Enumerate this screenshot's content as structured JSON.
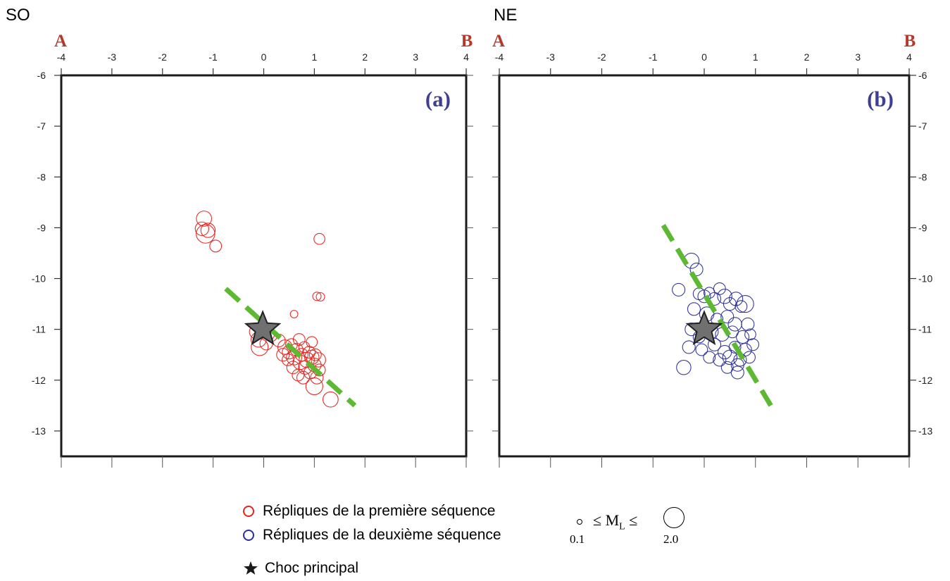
{
  "header": {
    "left": "SO",
    "right": "NE"
  },
  "colors": {
    "first": "#e8221c",
    "second": "#2c2f9a",
    "trend": "#5db832",
    "star": "#707070",
    "section_letter": "#b5382a",
    "panel_label": "#3d3f96"
  },
  "chart_data": [
    {
      "type": "scatter",
      "panel_label": "(a)",
      "section_start": "A",
      "section_end": "B",
      "xlim": [
        -4,
        4
      ],
      "ylim": [
        -13.5,
        -6
      ],
      "xticks": [
        -4,
        -3,
        -2,
        -1,
        0,
        1,
        2,
        3,
        4
      ],
      "yticks": [
        -6,
        -7,
        -8,
        -9,
        -10,
        -11,
        -12,
        -13
      ],
      "ytick_side": "left",
      "series": [
        {
          "name": "Répliques de la première séquence",
          "color": "#e8221c",
          "points": [
            {
              "x": -1.18,
              "y": -8.82,
              "m": 1.3
            },
            {
              "x": -1.22,
              "y": -9.02,
              "m": 1.1
            },
            {
              "x": -1.1,
              "y": -9.05,
              "m": 1.2
            },
            {
              "x": -1.15,
              "y": -9.12,
              "m": 1.7
            },
            {
              "x": -0.95,
              "y": -9.36,
              "m": 0.9
            },
            {
              "x": 1.1,
              "y": -9.22,
              "m": 0.8
            },
            {
              "x": 1.05,
              "y": -10.35,
              "m": 0.5
            },
            {
              "x": 1.12,
              "y": -10.36,
              "m": 0.5
            },
            {
              "x": 0.6,
              "y": -10.7,
              "m": 0.4
            },
            {
              "x": -0.15,
              "y": -11.05,
              "m": 1.1
            },
            {
              "x": -0.1,
              "y": -11.2,
              "m": 1.3
            },
            {
              "x": -0.08,
              "y": -11.35,
              "m": 1.5
            },
            {
              "x": 0.05,
              "y": -11.28,
              "m": 1.0
            },
            {
              "x": 0.15,
              "y": -11.12,
              "m": 0.9
            },
            {
              "x": 0.3,
              "y": -11.22,
              "m": 1.0
            },
            {
              "x": 0.42,
              "y": -11.35,
              "m": 1.2
            },
            {
              "x": 0.5,
              "y": -11.45,
              "m": 1.1
            },
            {
              "x": 0.55,
              "y": -11.3,
              "m": 0.9
            },
            {
              "x": 0.6,
              "y": -11.55,
              "m": 1.3
            },
            {
              "x": 0.65,
              "y": -11.4,
              "m": 1.0
            },
            {
              "x": 0.7,
              "y": -11.2,
              "m": 0.9
            },
            {
              "x": 0.72,
              "y": -11.65,
              "m": 1.2
            },
            {
              "x": 0.75,
              "y": -11.5,
              "m": 1.0
            },
            {
              "x": 0.8,
              "y": -11.35,
              "m": 0.8
            },
            {
              "x": 0.82,
              "y": -11.75,
              "m": 1.1
            },
            {
              "x": 0.85,
              "y": -11.6,
              "m": 1.3
            },
            {
              "x": 0.9,
              "y": -11.45,
              "m": 0.9
            },
            {
              "x": 0.92,
              "y": -11.85,
              "m": 1.0
            },
            {
              "x": 0.95,
              "y": -11.55,
              "m": 1.2
            },
            {
              "x": 1.0,
              "y": -11.7,
              "m": 1.1
            },
            {
              "x": 1.02,
              "y": -11.5,
              "m": 0.9
            },
            {
              "x": 1.05,
              "y": -11.95,
              "m": 1.0
            },
            {
              "x": 1.08,
              "y": -11.6,
              "m": 1.2
            },
            {
              "x": 1.1,
              "y": -11.8,
              "m": 0.9
            },
            {
              "x": 0.68,
              "y": -11.9,
              "m": 0.9
            },
            {
              "x": 0.78,
              "y": -11.95,
              "m": 1.0
            },
            {
              "x": 0.58,
              "y": -11.75,
              "m": 1.0
            },
            {
              "x": 0.48,
              "y": -11.6,
              "m": 0.9
            },
            {
              "x": 0.38,
              "y": -11.5,
              "m": 1.0
            },
            {
              "x": 1.0,
              "y": -12.12,
              "m": 1.5
            },
            {
              "x": 0.95,
              "y": -11.25,
              "m": 0.8
            },
            {
              "x": 1.32,
              "y": -12.38,
              "m": 1.3
            }
          ]
        }
      ],
      "mainshock": {
        "name": "Choc principal",
        "x": -0.02,
        "y": -11.0
      },
      "trend_line": {
        "x0": -0.75,
        "y0": -10.2,
        "x1": 1.8,
        "y1": -12.5
      }
    },
    {
      "type": "scatter",
      "panel_label": "(b)",
      "section_start": "A",
      "section_end": "B",
      "xlim": [
        -4,
        4
      ],
      "ylim": [
        -13.5,
        -6
      ],
      "xticks": [
        -4,
        -3,
        -2,
        -1,
        0,
        1,
        2,
        3,
        4
      ],
      "yticks": [
        -6,
        -7,
        -8,
        -9,
        -10,
        -11,
        -12,
        -13
      ],
      "ytick_side": "right",
      "series": [
        {
          "name": "Répliques de la deuxième séquence",
          "color": "#2c2f9a",
          "points": [
            {
              "x": -0.25,
              "y": -9.65,
              "m": 1.3
            },
            {
              "x": -0.15,
              "y": -9.82,
              "m": 1.0
            },
            {
              "x": -0.5,
              "y": -10.22,
              "m": 1.0
            },
            {
              "x": -0.1,
              "y": -10.3,
              "m": 0.9
            },
            {
              "x": 0.0,
              "y": -10.35,
              "m": 1.0
            },
            {
              "x": 0.1,
              "y": -10.28,
              "m": 0.8
            },
            {
              "x": 0.2,
              "y": -10.4,
              "m": 1.0
            },
            {
              "x": 0.3,
              "y": -10.2,
              "m": 0.9
            },
            {
              "x": 0.4,
              "y": -10.35,
              "m": 1.2
            },
            {
              "x": 0.5,
              "y": -10.5,
              "m": 1.0
            },
            {
              "x": 0.62,
              "y": -10.4,
              "m": 1.1
            },
            {
              "x": 0.72,
              "y": -10.55,
              "m": 0.9
            },
            {
              "x": 0.8,
              "y": -10.5,
              "m": 1.5
            },
            {
              "x": -0.2,
              "y": -10.6,
              "m": 1.0
            },
            {
              "x": 0.05,
              "y": -10.7,
              "m": 1.2
            },
            {
              "x": 0.25,
              "y": -10.8,
              "m": 0.9
            },
            {
              "x": 0.45,
              "y": -10.75,
              "m": 1.0
            },
            {
              "x": 0.6,
              "y": -10.9,
              "m": 1.1
            },
            {
              "x": 0.85,
              "y": -10.9,
              "m": 1.0
            },
            {
              "x": -0.25,
              "y": -11.0,
              "m": 1.0
            },
            {
              "x": -0.1,
              "y": -11.15,
              "m": 0.9
            },
            {
              "x": 0.15,
              "y": -11.05,
              "m": 1.0
            },
            {
              "x": 0.35,
              "y": -11.1,
              "m": 1.1
            },
            {
              "x": 0.55,
              "y": -11.05,
              "m": 0.9
            },
            {
              "x": 0.75,
              "y": -11.15,
              "m": 1.0
            },
            {
              "x": 0.9,
              "y": -11.1,
              "m": 0.8
            },
            {
              "x": -0.3,
              "y": -11.35,
              "m": 1.0
            },
            {
              "x": -0.05,
              "y": -11.4,
              "m": 0.9
            },
            {
              "x": 0.2,
              "y": -11.3,
              "m": 1.0
            },
            {
              "x": 0.4,
              "y": -11.45,
              "m": 1.1
            },
            {
              "x": 0.6,
              "y": -11.35,
              "m": 0.9
            },
            {
              "x": 0.8,
              "y": -11.4,
              "m": 1.0
            },
            {
              "x": 0.95,
              "y": -11.3,
              "m": 0.9
            },
            {
              "x": 0.3,
              "y": -11.6,
              "m": 1.0
            },
            {
              "x": 0.5,
              "y": -11.55,
              "m": 1.2
            },
            {
              "x": 0.7,
              "y": -11.6,
              "m": 1.0
            },
            {
              "x": 0.88,
              "y": -11.55,
              "m": 0.9
            },
            {
              "x": 0.45,
              "y": -11.75,
              "m": 0.9
            },
            {
              "x": 0.65,
              "y": -11.7,
              "m": 1.0
            },
            {
              "x": 0.65,
              "y": -11.85,
              "m": 1.0
            },
            {
              "x": -0.4,
              "y": -11.75,
              "m": 1.2
            },
            {
              "x": 0.1,
              "y": -11.55,
              "m": 0.9
            }
          ]
        }
      ],
      "mainshock": {
        "name": "Choc principal",
        "x": 0.0,
        "y": -11.0
      },
      "trend_line": {
        "x0": -0.8,
        "y0": -8.95,
        "x1": 1.3,
        "y1": -12.5
      }
    }
  ],
  "legend": {
    "first_label": "Répliques de la première séquence",
    "second_label": "Répliques de la deuxième séquence",
    "mainshock_label": "Choc principal",
    "scale_expression": "≤ M",
    "scale_subscript": "L",
    "scale_expression_end": "≤",
    "scale_min": "0.1",
    "scale_max": "2.0"
  }
}
